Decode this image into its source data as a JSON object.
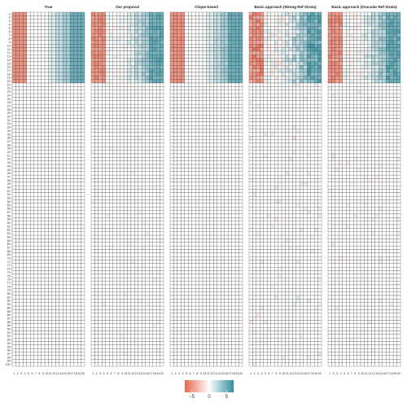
{
  "chart_data": {
    "type": "heatmap",
    "row_labels_range": [
      1,
      100
    ],
    "column_labels_range": [
      1,
      20
    ],
    "value_range": [
      -7,
      7
    ],
    "colors": {
      "negative": "#e8674f",
      "midpoint": "#ffffff",
      "positive": "#2f8fa0",
      "grid": "#333333"
    },
    "panels": [
      {
        "title": "True",
        "noise": 0
      },
      {
        "title": "Our proposal",
        "noise": 0.7
      },
      {
        "title": "Clique-based",
        "noise": 0.3
      },
      {
        "title": "Basic approach (Wrong Ref Strata)",
        "noise": 1.3
      },
      {
        "title": "Basic approach (Oracular Ref Strata)",
        "noise": 0.9
      }
    ],
    "signal_rows": [
      1,
      20
    ],
    "column_effects": [
      -5,
      -5,
      -5,
      -5,
      0,
      0,
      0,
      0,
      0,
      0,
      1,
      1,
      2,
      2,
      3,
      3,
      5,
      5,
      5,
      5
    ],
    "legend": {
      "ticks": [
        -5,
        0,
        5
      ],
      "labels": [
        "−5",
        "0",
        "5"
      ]
    }
  }
}
